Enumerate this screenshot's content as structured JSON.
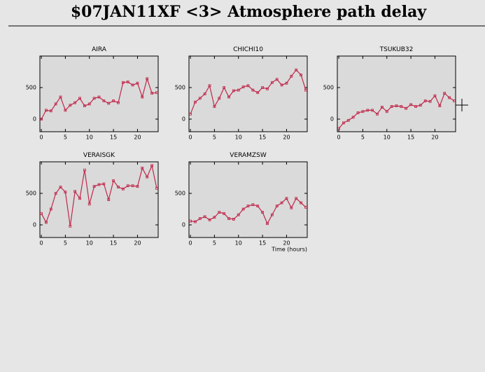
{
  "title": "$07JAN11XF <3>  Atmosphere path delay",
  "chart_data": [
    {
      "type": "line",
      "title": "AIRA",
      "x": [
        0,
        1,
        2,
        3,
        4,
        5,
        6,
        7,
        8,
        9,
        10,
        11,
        12,
        13,
        14,
        15,
        16,
        17,
        18,
        19,
        20,
        21,
        22,
        23,
        24
      ],
      "values": [
        0,
        140,
        130,
        240,
        350,
        140,
        220,
        260,
        330,
        210,
        240,
        330,
        350,
        290,
        250,
        290,
        260,
        580,
        590,
        540,
        570,
        350,
        640,
        410,
        420
      ],
      "color": "#c0284a",
      "xlim": [
        -0.3,
        24.3
      ],
      "ylim": [
        -200,
        1000
      ],
      "xticks": [
        0,
        5,
        10,
        15,
        20
      ],
      "yticks": [
        0,
        500
      ]
    },
    {
      "type": "line",
      "title": "CHICHI10",
      "x": [
        0,
        1,
        2,
        3,
        4,
        5,
        6,
        7,
        8,
        9,
        10,
        11,
        12,
        13,
        14,
        15,
        16,
        17,
        18,
        19,
        20,
        21,
        22,
        23,
        24
      ],
      "values": [
        80,
        270,
        330,
        400,
        530,
        200,
        330,
        500,
        350,
        450,
        460,
        510,
        530,
        460,
        420,
        500,
        480,
        580,
        630,
        540,
        570,
        680,
        780,
        700,
        460
      ],
      "color": "#c0284a",
      "xlim": [
        -0.3,
        24.3
      ],
      "ylim": [
        -200,
        1000
      ],
      "xticks": [
        0,
        5,
        10,
        15,
        20
      ],
      "yticks": [
        0,
        500
      ]
    },
    {
      "type": "line",
      "title": "TSUKUB32",
      "x": [
        0,
        1,
        2,
        3,
        4,
        5,
        6,
        7,
        8,
        9,
        10,
        11,
        12,
        13,
        14,
        15,
        16,
        17,
        18,
        19,
        20,
        21,
        22,
        23,
        24
      ],
      "values": [
        -150,
        -60,
        -20,
        30,
        100,
        120,
        140,
        140,
        80,
        190,
        120,
        200,
        210,
        200,
        170,
        230,
        200,
        220,
        290,
        280,
        370,
        210,
        410,
        340,
        290
      ],
      "color": "#c0284a",
      "xlim": [
        -0.3,
        24.3
      ],
      "ylim": [
        -200,
        1000
      ],
      "xticks": [
        0,
        5,
        10,
        15,
        20
      ],
      "yticks": [
        0,
        500
      ]
    },
    {
      "type": "line",
      "title": "VERAISGK",
      "x": [
        0,
        1,
        2,
        3,
        4,
        5,
        6,
        7,
        8,
        9,
        10,
        11,
        12,
        13,
        14,
        15,
        16,
        17,
        18,
        19,
        20,
        21,
        22,
        23,
        24
      ],
      "values": [
        180,
        40,
        250,
        500,
        600,
        520,
        -20,
        530,
        420,
        870,
        330,
        610,
        640,
        650,
        400,
        700,
        600,
        570,
        620,
        620,
        610,
        900,
        760,
        940,
        580
      ],
      "color": "#c0284a",
      "xlim": [
        -0.3,
        24.3
      ],
      "ylim": [
        -200,
        1000
      ],
      "xticks": [
        0,
        5,
        10,
        15,
        20
      ],
      "yticks": [
        0,
        500
      ]
    },
    {
      "type": "line",
      "title": "VERAMZSW",
      "xlabel": "Time (hours)",
      "x": [
        0,
        1,
        2,
        3,
        4,
        5,
        6,
        7,
        8,
        9,
        10,
        11,
        12,
        13,
        14,
        15,
        16,
        17,
        18,
        19,
        20,
        21,
        22,
        23,
        24
      ],
      "values": [
        60,
        50,
        100,
        130,
        80,
        120,
        200,
        180,
        100,
        90,
        160,
        250,
        300,
        320,
        300,
        200,
        20,
        160,
        300,
        350,
        420,
        270,
        420,
        350,
        280
      ],
      "color": "#c0284a",
      "xlim": [
        -0.3,
        24.3
      ],
      "ylim": [
        -200,
        1000
      ],
      "xticks": [
        0,
        5,
        10,
        15,
        20
      ],
      "yticks": [
        0,
        500
      ]
    }
  ]
}
